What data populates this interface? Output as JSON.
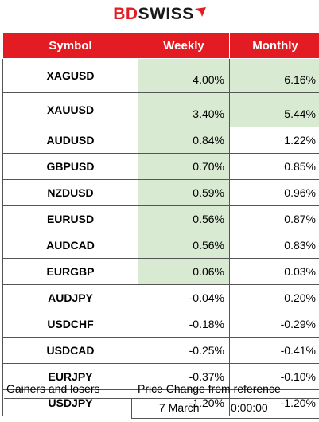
{
  "logo": {
    "part1": "BD",
    "part2": "SWISS"
  },
  "table": {
    "headers": [
      "Symbol",
      "Weekly",
      "Monthly"
    ],
    "rows": [
      {
        "symbol": "XAGUSD",
        "weekly": "4.00%",
        "monthly": "6.16%",
        "weekly_hl": true,
        "monthly_hl": true
      },
      {
        "symbol": "XAUUSD",
        "weekly": "3.40%",
        "monthly": "5.44%",
        "weekly_hl": true,
        "monthly_hl": true
      },
      {
        "symbol": "AUDUSD",
        "weekly": "0.84%",
        "monthly": "1.22%",
        "weekly_hl": true,
        "monthly_hl": false
      },
      {
        "symbol": "GBPUSD",
        "weekly": "0.70%",
        "monthly": "0.85%",
        "weekly_hl": true,
        "monthly_hl": false
      },
      {
        "symbol": "NZDUSD",
        "weekly": "0.59%",
        "monthly": "0.96%",
        "weekly_hl": true,
        "monthly_hl": false
      },
      {
        "symbol": "EURUSD",
        "weekly": "0.56%",
        "monthly": "0.87%",
        "weekly_hl": true,
        "monthly_hl": false
      },
      {
        "symbol": "AUDCAD",
        "weekly": "0.56%",
        "monthly": "0.83%",
        "weekly_hl": true,
        "monthly_hl": false
      },
      {
        "symbol": "EURGBP",
        "weekly": "0.06%",
        "monthly": "0.03%",
        "weekly_hl": true,
        "monthly_hl": false
      },
      {
        "symbol": "AUDJPY",
        "weekly": "-0.04%",
        "monthly": "0.20%",
        "weekly_hl": false,
        "monthly_hl": false
      },
      {
        "symbol": "USDCHF",
        "weekly": "-0.18%",
        "monthly": "-0.29%",
        "weekly_hl": false,
        "monthly_hl": false
      },
      {
        "symbol": "USDCAD",
        "weekly": "-0.25%",
        "monthly": "-0.41%",
        "weekly_hl": false,
        "monthly_hl": false
      },
      {
        "symbol": "EURJPY",
        "weekly": "-0.37%",
        "monthly": "-0.10%",
        "weekly_hl": false,
        "monthly_hl": false
      },
      {
        "symbol": "USDJPY",
        "weekly": "-1.20%",
        "monthly": "-1.20%",
        "weekly_hl": false,
        "monthly_hl": false
      }
    ]
  },
  "footer": {
    "left_label": "Gainers and losers",
    "right_label": "Price Change from reference",
    "date": "7 March",
    "time": "0:00:00"
  },
  "colors": {
    "brand_red": "#e31c23",
    "highlight_green": "#d9ead3"
  }
}
